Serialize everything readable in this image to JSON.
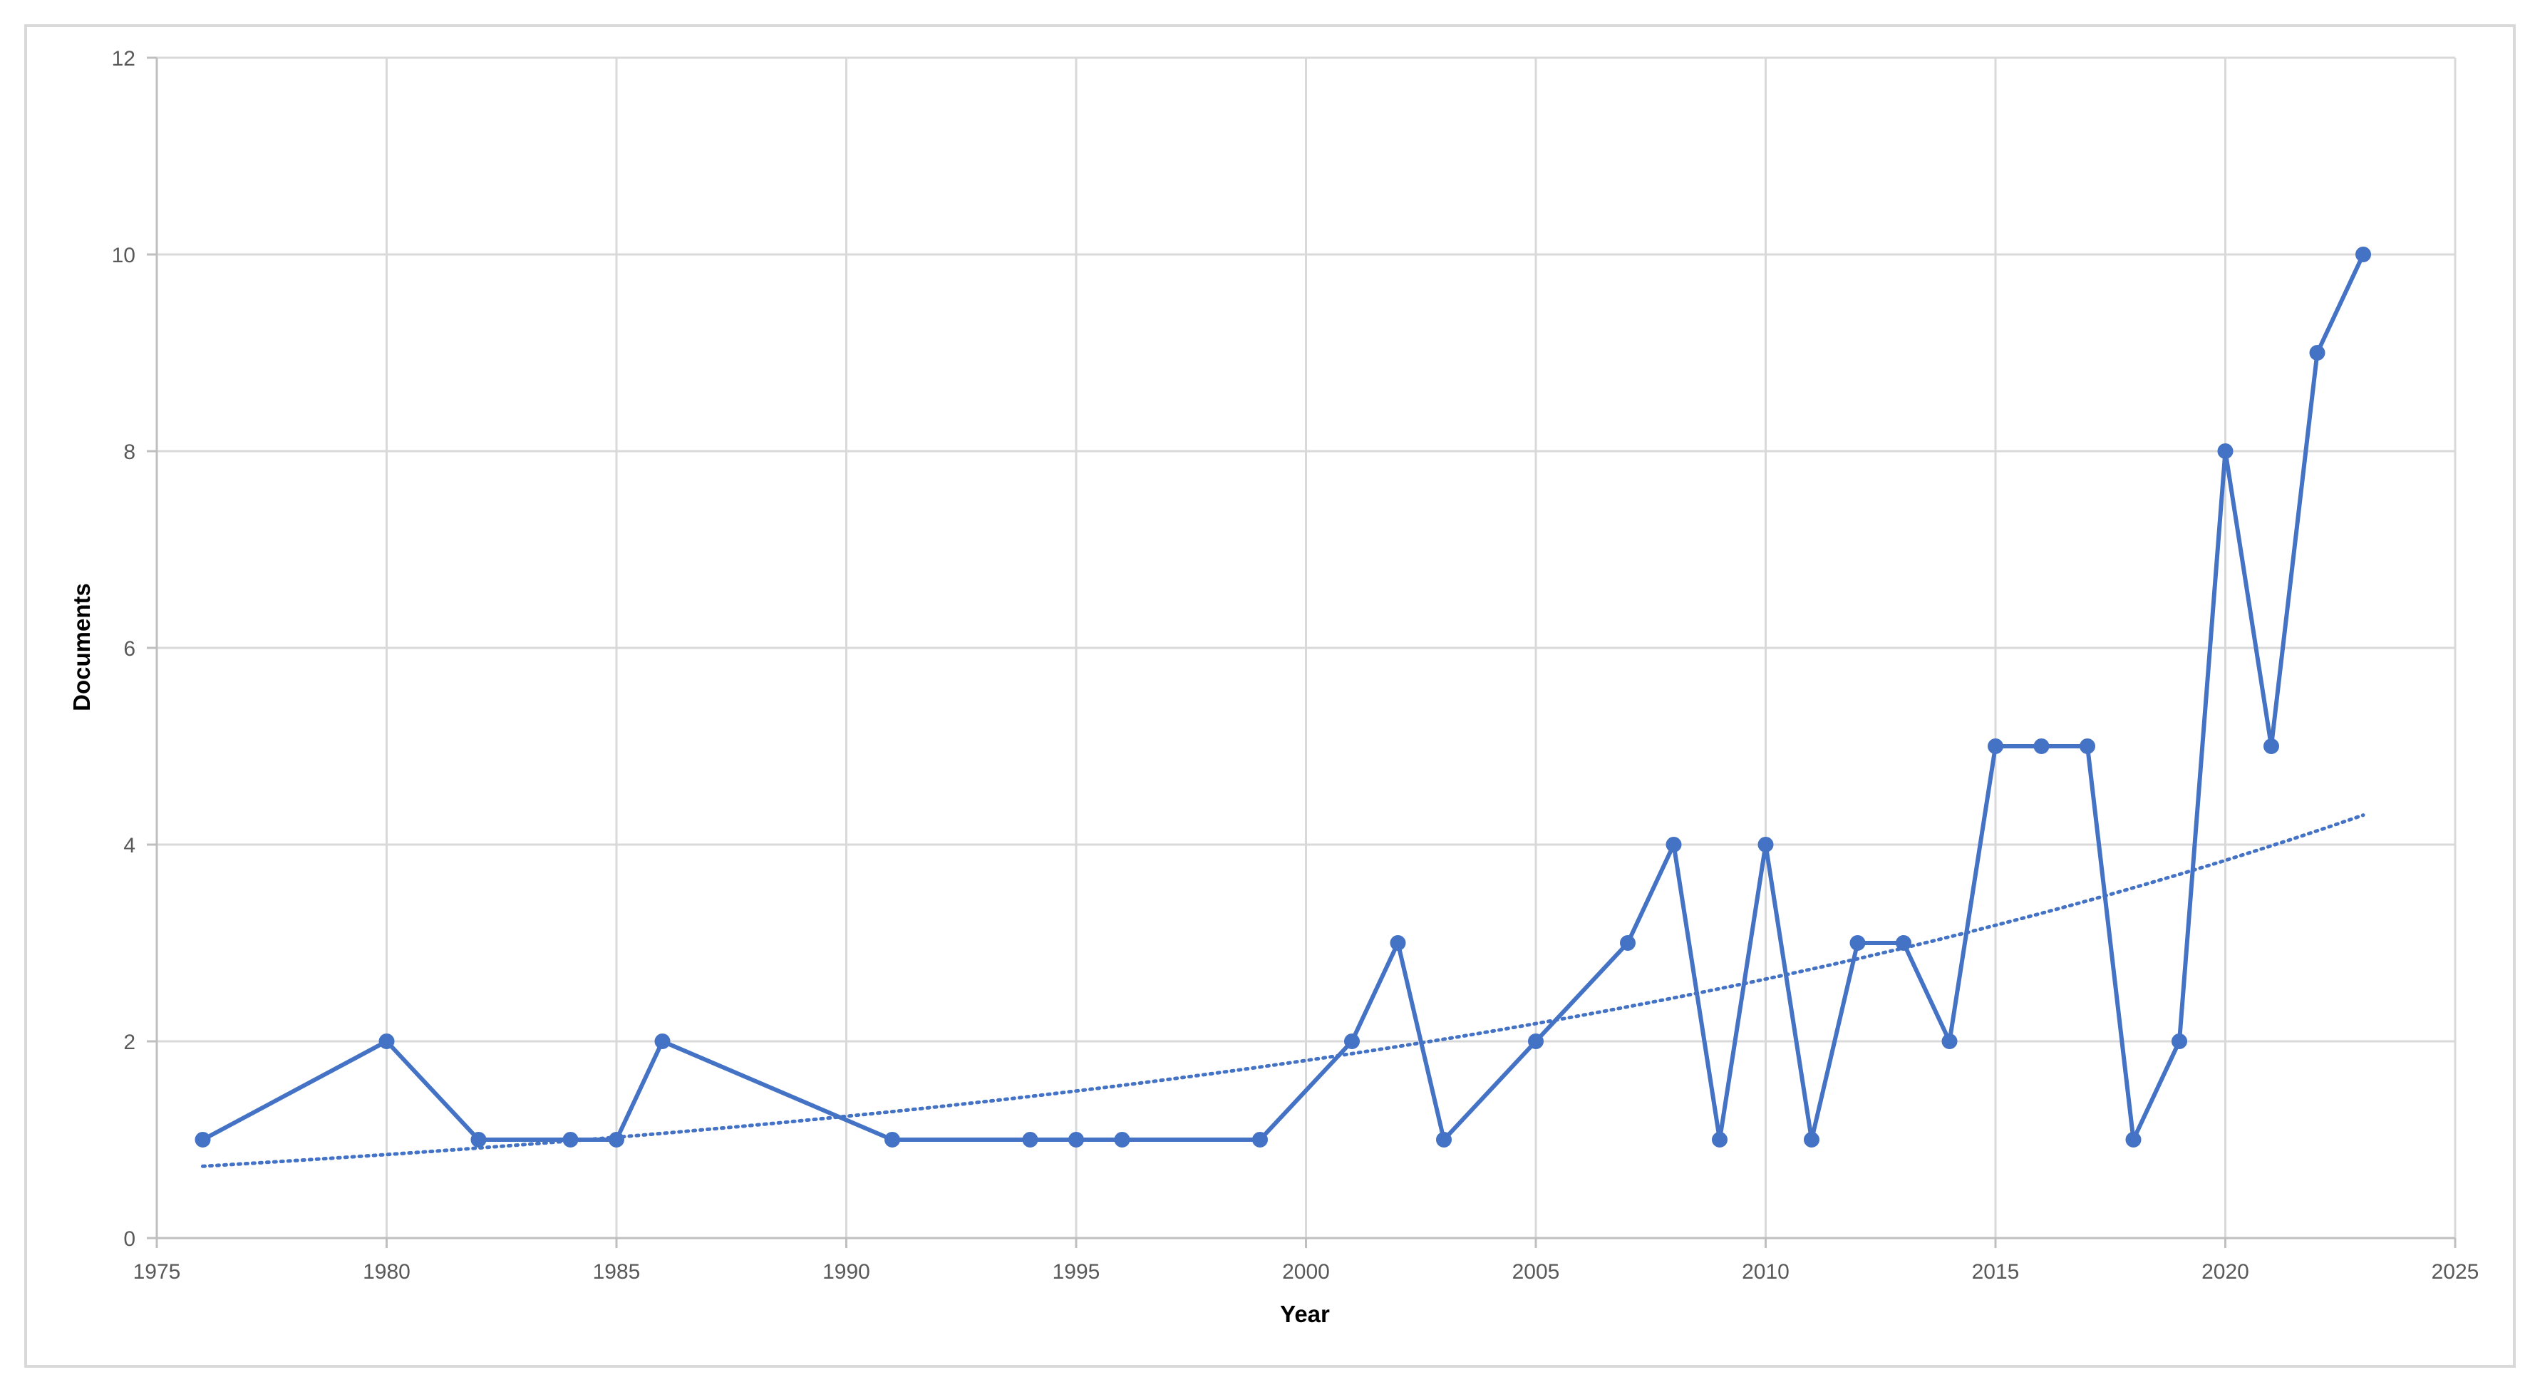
{
  "chart_data": {
    "type": "scatter",
    "title": "",
    "xlabel": "Year",
    "ylabel": "Documents",
    "xlim": [
      1975,
      2025
    ],
    "ylim": [
      0,
      12
    ],
    "x_ticks": [
      1975,
      1980,
      1985,
      1990,
      1995,
      2000,
      2005,
      2010,
      2015,
      2020,
      2025
    ],
    "y_ticks": [
      0,
      2,
      4,
      6,
      8,
      10,
      12
    ],
    "grid": true,
    "legend": "none",
    "colors": {
      "series": "#4472c4",
      "grid": "#d9d9d9",
      "axis": "#bfbfbf"
    },
    "series": [
      {
        "style": "line-with-markers",
        "x": [
          1976,
          1980,
          1982,
          1984,
          1985,
          1986,
          1991,
          1994,
          1995,
          1996,
          1999,
          2001,
          2002,
          2003,
          2005,
          2007,
          2008,
          2009,
          2010,
          2011,
          2012,
          2013,
          2014,
          2015,
          2016,
          2017,
          2018,
          2019,
          2020,
          2021,
          2022,
          2023
        ],
        "y": [
          1,
          2,
          1,
          1,
          1,
          2,
          1,
          1,
          1,
          1,
          1,
          2,
          3,
          1,
          2,
          3,
          4,
          1,
          4,
          1,
          3,
          3,
          2,
          5,
          5,
          5,
          1,
          2,
          8,
          5,
          9,
          10
        ]
      }
    ],
    "trendline": {
      "type": "exponential",
      "style": "dotted",
      "x": [
        1976,
        2023
      ],
      "y": [
        0.73,
        4.3
      ]
    }
  }
}
